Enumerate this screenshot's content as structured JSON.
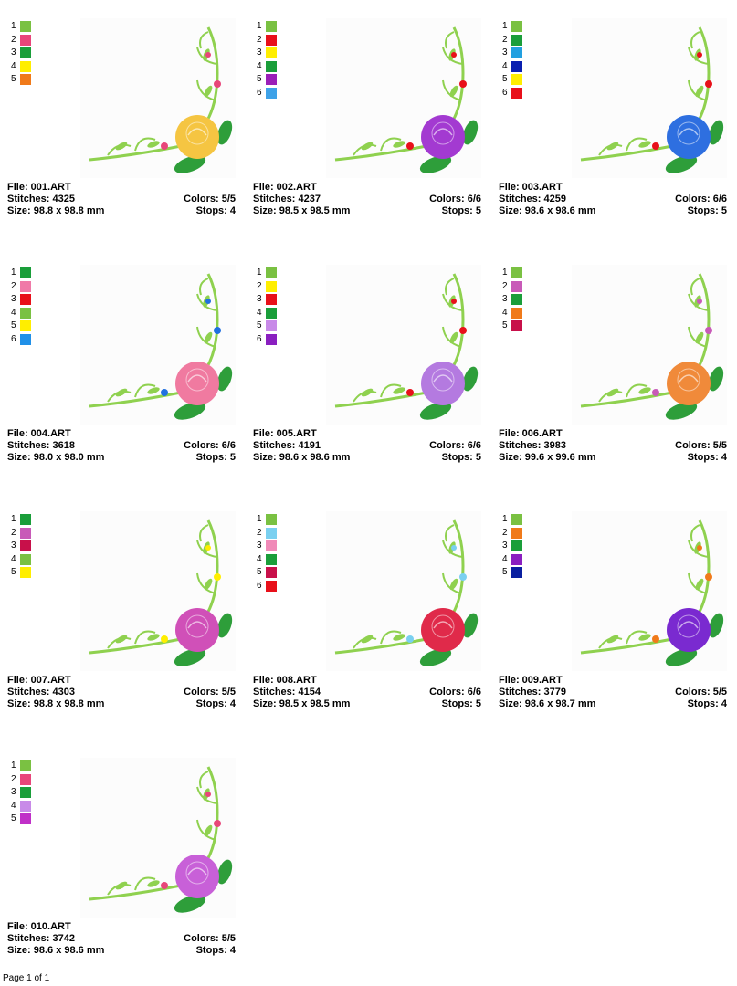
{
  "footer": {
    "page_text": "Page 1 of 1"
  },
  "designs": [
    {
      "file": "File: 001.ART",
      "stitches": "Stitches: 4325",
      "colors": "Colors: 5/5",
      "size": "Size: 98.8 x 98.8 mm",
      "stops": "Stops: 4",
      "palette": [
        {
          "n": "1",
          "c": "#7ac142"
        },
        {
          "n": "2",
          "c": "#e8467a"
        },
        {
          "n": "3",
          "c": "#1a9e3a"
        },
        {
          "n": "4",
          "c": "#ffee00"
        },
        {
          "n": "5",
          "c": "#f07a1a"
        }
      ],
      "flower": "#f5c542",
      "accent": "#e8467a"
    },
    {
      "file": "File: 002.ART",
      "stitches": "Stitches: 4237",
      "colors": "Colors: 6/6",
      "size": "Size: 98.5 x 98.5 mm",
      "stops": "Stops: 5",
      "palette": [
        {
          "n": "1",
          "c": "#7ac142"
        },
        {
          "n": "2",
          "c": "#e8101a"
        },
        {
          "n": "3",
          "c": "#ffee00"
        },
        {
          "n": "4",
          "c": "#1a9e3a"
        },
        {
          "n": "5",
          "c": "#9b1fb8"
        },
        {
          "n": "6",
          "c": "#3ea2e8"
        }
      ],
      "flower": "#a33ad1",
      "accent": "#e8101a"
    },
    {
      "file": "File: 003.ART",
      "stitches": "Stitches: 4259",
      "colors": "Colors: 6/6",
      "size": "Size: 98.6 x 98.6 mm",
      "stops": "Stops: 5",
      "palette": [
        {
          "n": "1",
          "c": "#7ac142"
        },
        {
          "n": "2",
          "c": "#1a9e3a"
        },
        {
          "n": "3",
          "c": "#22a0e0"
        },
        {
          "n": "4",
          "c": "#0a1fb0"
        },
        {
          "n": "5",
          "c": "#ffee00"
        },
        {
          "n": "6",
          "c": "#e8101a"
        }
      ],
      "flower": "#2e6fe0",
      "accent": "#e8101a"
    },
    {
      "file": "File: 004.ART",
      "stitches": "Stitches: 3618",
      "colors": "Colors: 6/6",
      "size": "Size: 98.0 x 98.0 mm",
      "stops": "Stops: 5",
      "palette": [
        {
          "n": "1",
          "c": "#1a9e3a"
        },
        {
          "n": "2",
          "c": "#f07aa8"
        },
        {
          "n": "3",
          "c": "#e8101a"
        },
        {
          "n": "4",
          "c": "#7ac142"
        },
        {
          "n": "5",
          "c": "#ffee00"
        },
        {
          "n": "6",
          "c": "#2090e8"
        }
      ],
      "flower": "#f07aa0",
      "accent": "#2070e0"
    },
    {
      "file": "File: 005.ART",
      "stitches": "Stitches: 4191",
      "colors": "Colors: 6/6",
      "size": "Size: 98.6 x 98.6 mm",
      "stops": "Stops: 5",
      "palette": [
        {
          "n": "1",
          "c": "#7ac142"
        },
        {
          "n": "2",
          "c": "#ffee00"
        },
        {
          "n": "3",
          "c": "#e8101a"
        },
        {
          "n": "4",
          "c": "#1a9e3a"
        },
        {
          "n": "5",
          "c": "#c88ae8"
        },
        {
          "n": "6",
          "c": "#8a1fc0"
        }
      ],
      "flower": "#b47ae0",
      "accent": "#e8101a"
    },
    {
      "file": "File: 006.ART",
      "stitches": "Stitches: 3983",
      "colors": "Colors: 5/5",
      "size": "Size: 99.6 x 99.6 mm",
      "stops": "Stops: 4",
      "palette": [
        {
          "n": "1",
          "c": "#7ac142"
        },
        {
          "n": "2",
          "c": "#c85ab8"
        },
        {
          "n": "3",
          "c": "#1a9e3a"
        },
        {
          "n": "4",
          "c": "#f07a1a"
        },
        {
          "n": "5",
          "c": "#c8104a"
        }
      ],
      "flower": "#f08a3a",
      "accent": "#c85ab8"
    },
    {
      "file": "File: 007.ART",
      "stitches": "Stitches: 4303",
      "colors": "Colors: 5/5",
      "size": "Size: 98.8 x 98.8 mm",
      "stops": "Stops: 4",
      "palette": [
        {
          "n": "1",
          "c": "#1a9e3a"
        },
        {
          "n": "2",
          "c": "#c85ab8"
        },
        {
          "n": "3",
          "c": "#c8104a"
        },
        {
          "n": "4",
          "c": "#7ac142"
        },
        {
          "n": "5",
          "c": "#ffee00"
        }
      ],
      "flower": "#d050b8",
      "accent": "#ffee00"
    },
    {
      "file": "File: 008.ART",
      "stitches": "Stitches: 4154",
      "colors": "Colors: 6/6",
      "size": "Size: 98.5 x 98.5 mm",
      "stops": "Stops: 5",
      "palette": [
        {
          "n": "1",
          "c": "#7ac142"
        },
        {
          "n": "2",
          "c": "#7ad0f0"
        },
        {
          "n": "3",
          "c": "#f08ab8"
        },
        {
          "n": "4",
          "c": "#1a9e3a"
        },
        {
          "n": "5",
          "c": "#c8104a"
        },
        {
          "n": "6",
          "c": "#e8101a"
        }
      ],
      "flower": "#e02a4a",
      "accent": "#7ad0f0"
    },
    {
      "file": "File: 009.ART",
      "stitches": "Stitches: 3779",
      "colors": "Colors: 5/5",
      "size": "Size: 98.6 x 98.7 mm",
      "stops": "Stops: 4",
      "palette": [
        {
          "n": "1",
          "c": "#7ac142"
        },
        {
          "n": "2",
          "c": "#f07a1a"
        },
        {
          "n": "3",
          "c": "#1a9e3a"
        },
        {
          "n": "4",
          "c": "#8a1fc0"
        },
        {
          "n": "5",
          "c": "#0a1fa0"
        }
      ],
      "flower": "#7a2ad0",
      "accent": "#f07a1a"
    },
    {
      "file": "File: 010.ART",
      "stitches": "Stitches: 3742",
      "colors": "Colors: 5/5",
      "size": "Size: 98.6 x 98.6 mm",
      "stops": "Stops: 4",
      "palette": [
        {
          "n": "1",
          "c": "#7ac142"
        },
        {
          "n": "2",
          "c": "#e8467a"
        },
        {
          "n": "3",
          "c": "#1a9e3a"
        },
        {
          "n": "4",
          "c": "#c88ae8"
        },
        {
          "n": "5",
          "c": "#c030c8"
        }
      ],
      "flower": "#c860d8",
      "accent": "#e8467a"
    }
  ]
}
